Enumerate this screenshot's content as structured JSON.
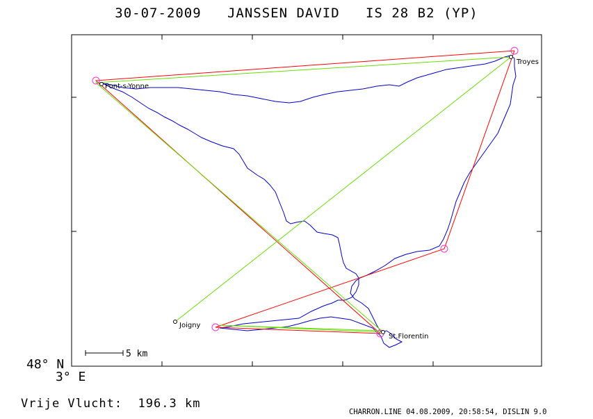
{
  "header": {
    "date": "30-07-2009",
    "pilot": "JANSSEN DAVID",
    "glider": "IS 28 B2 (YP)"
  },
  "axes": {
    "lat_label": "48° N",
    "lon_label": "3° E"
  },
  "scale_bar": {
    "label": "5 km"
  },
  "places": [
    {
      "name": "Troyes"
    },
    {
      "name": "Pont-s-Yonne"
    },
    {
      "name": "Joigny"
    },
    {
      "name": "St.Florentin"
    }
  ],
  "summary": {
    "label": "Vrije Vlucht:",
    "distance": "196.3 km"
  },
  "footer": "CHARRON.LINE 04.08.2009, 20:58:54, DISLIN 9.0",
  "colors": {
    "track": "#0000cc",
    "task": "#ff0000",
    "optimized": "#66dd00",
    "turnpoint": "#ff33cc",
    "frame": "#000000"
  }
}
